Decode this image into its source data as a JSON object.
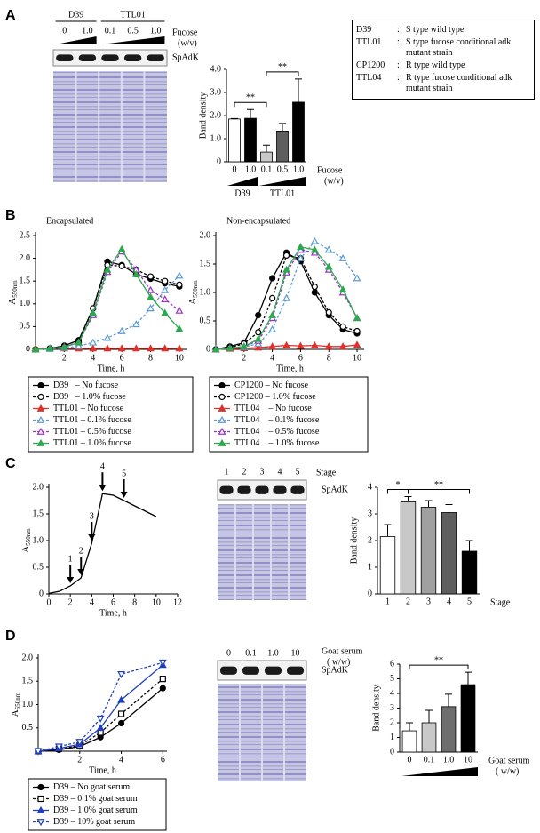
{
  "panel_letters": [
    "A",
    "B",
    "C",
    "D"
  ],
  "strain_table": [
    [
      "D39",
      ":",
      "S type wild type"
    ],
    [
      "TTL01",
      ":",
      "S type fucose conditional adk mutant strain"
    ],
    [
      "CP1200",
      ":",
      "R type wild type"
    ],
    [
      "TTL04",
      ":",
      "R type fucose conditional adk mutant strain"
    ]
  ],
  "blots": [
    {
      "groups": [
        {
          "label": "D39",
          "lanes": [
            0,
            1
          ]
        },
        {
          "label": "TTL01",
          "lanes": [
            2,
            3,
            4
          ]
        }
      ],
      "lanes": [
        "0",
        "1.0",
        "0.1",
        "0.5",
        "1.0"
      ],
      "condition_label": [
        "Fucose",
        "(w/v)"
      ],
      "band_label": "SpAdK"
    },
    {
      "lanes": [
        "1",
        "2",
        "3",
        "4",
        "5"
      ],
      "condition_label": [
        "Stage"
      ],
      "band_label": "SpAdK"
    },
    {
      "lanes": [
        "0",
        "0.1",
        "1.0",
        "10"
      ],
      "condition_label": [
        "Goat serum",
        "( w/w)"
      ],
      "band_label": "SpAdK"
    }
  ],
  "chart_data": [
    {
      "type": "bar",
      "categories": [
        "0",
        "1.0",
        "0.1",
        "0.5",
        "1.0"
      ],
      "values": [
        1.85,
        1.88,
        0.42,
        1.33,
        2.58
      ],
      "errors": [
        0.02,
        0.38,
        0.3,
        0.33,
        1.0
      ],
      "colors": [
        "#ffffff",
        "#000000",
        "#c8c8c8",
        "#5e5e5e",
        "#000000"
      ],
      "ylim": [
        0,
        4
      ],
      "yticks": [
        0,
        {
          "value": 1,
          "label": "1.0"
        },
        {
          "value": 2,
          "label": "2.0"
        },
        {
          "value": 3,
          "label": "3.0"
        },
        {
          "value": 4,
          "label": "4.0"
        }
      ],
      "y_label": "Band density",
      "x_label": [
        "Fucose",
        "(w/v)"
      ],
      "wedge": true,
      "groups": [
        {
          "label": "D39",
          "categories": [
            0,
            1
          ]
        },
        {
          "label": "TTL01",
          "categories": [
            2,
            3,
            4
          ]
        }
      ],
      "significance": [
        {
          "between": [
            0,
            2
          ],
          "label": "**"
        },
        {
          "between": [
            2,
            4
          ],
          "label": "**"
        }
      ]
    },
    {
      "type": "line",
      "title": "Encapsulated",
      "x": [
        0,
        1,
        2,
        3,
        4,
        5,
        6,
        7,
        8,
        9,
        10
      ],
      "xlim": [
        0,
        10.5
      ],
      "xticks": [
        2,
        4,
        6,
        8,
        10
      ],
      "ylim": [
        0,
        2.5
      ],
      "yticks": [
        0,
        0.5,
        {
          "value": 1,
          "label": "1.0"
        },
        1.5,
        {
          "value": 2,
          "label": "2.0"
        },
        2.5
      ],
      "x_label": "Time, h",
      "y_label": {
        "main": "A",
        "sub": "550nm"
      },
      "legend": true,
      "series": [
        {
          "name": "D39   – No fucose",
          "color": "#000000",
          "marker": "circle",
          "filled": true,
          "dashed": false,
          "values": [
            0,
            0.02,
            0.08,
            0.2,
            0.9,
            1.93,
            1.85,
            1.65,
            1.55,
            1.45,
            1.38
          ]
        },
        {
          "name": "D39   – 1.0% fucose",
          "color": "#000000",
          "marker": "circle",
          "filled": false,
          "dashed": true,
          "values": [
            0,
            0.02,
            0.06,
            0.15,
            0.9,
            1.85,
            1.83,
            1.75,
            1.6,
            1.5,
            1.42
          ]
        },
        {
          "name": "TTL01 – No fucose",
          "color": "#e0302a",
          "marker": "triangle",
          "filled": true,
          "dashed": false,
          "values": [
            0.02,
            0.02,
            0.02,
            0.02,
            0.02,
            0.02,
            0.02,
            0.02,
            0.02,
            0.02,
            0.02
          ]
        },
        {
          "name": "TTL01 – 0.1% fucose",
          "color": "#5b9bd5",
          "marker": "triangle",
          "filled": false,
          "dashed": true,
          "values": [
            0,
            0.01,
            0.03,
            0.07,
            0.15,
            0.25,
            0.4,
            0.55,
            0.9,
            1.3,
            1.62
          ]
        },
        {
          "name": "TTL01 – 0.5% fucose",
          "color": "#9b30c8",
          "marker": "triangle",
          "filled": false,
          "dashed": true,
          "values": [
            0,
            0.02,
            0.05,
            0.15,
            0.75,
            1.7,
            2.15,
            1.75,
            1.3,
            1.1,
            0.85
          ]
        },
        {
          "name": "TTL01 – 1.0% fucose",
          "color": "#2ca850",
          "marker": "triangle",
          "filled": true,
          "dashed": false,
          "values": [
            0,
            0.02,
            0.05,
            0.15,
            0.8,
            1.75,
            2.2,
            1.65,
            1.15,
            0.8,
            0.45
          ]
        }
      ]
    },
    {
      "type": "line",
      "title": "Non-encapsulated",
      "x": [
        0,
        1,
        2,
        3,
        4,
        5,
        6,
        7,
        8,
        9,
        10
      ],
      "xlim": [
        0,
        10.5
      ],
      "xticks": [
        2,
        4,
        6,
        8,
        10
      ],
      "ylim": [
        0,
        2
      ],
      "yticks": [
        0,
        0.5,
        {
          "value": 1,
          "label": "1.0"
        },
        1.5,
        {
          "value": 2,
          "label": "2.0"
        }
      ],
      "x_label": "Time, h",
      "y_label": {
        "main": "A",
        "sub": "550nm"
      },
      "legend": true,
      "series": [
        {
          "name": "CP1200 – No fucose",
          "color": "#000000",
          "marker": "circle",
          "filled": true,
          "dashed": false,
          "values": [
            0,
            0.05,
            0.12,
            0.6,
            1.25,
            1.7,
            1.55,
            1.0,
            0.6,
            0.35,
            0.28
          ]
        },
        {
          "name": "CP1200 – 1.0% fucose",
          "color": "#000000",
          "marker": "circle",
          "filled": false,
          "dashed": true,
          "values": [
            0,
            0.03,
            0.1,
            0.3,
            0.9,
            1.65,
            1.6,
            1.1,
            0.65,
            0.4,
            0.32
          ]
        },
        {
          "name": "TTL04    – No fucose",
          "color": "#e0302a",
          "marker": "triangle",
          "filled": true,
          "dashed": false,
          "values": [
            0,
            0.01,
            0.02,
            0.03,
            0.05,
            0.07,
            0.06,
            0.07,
            0.05,
            0.05,
            0.08
          ]
        },
        {
          "name": "TTL04    – 0.1% fucose",
          "color": "#5b9bd5",
          "marker": "triangle",
          "filled": false,
          "dashed": true,
          "values": [
            0,
            0.02,
            0.04,
            0.1,
            0.35,
            0.9,
            1.6,
            1.9,
            1.75,
            1.6,
            1.25
          ]
        },
        {
          "name": "TTL04    – 0.5% fucose",
          "color": "#9b30c8",
          "marker": "triangle",
          "filled": false,
          "dashed": true,
          "values": [
            0,
            0.02,
            0.05,
            0.15,
            0.55,
            1.35,
            1.75,
            1.7,
            1.4,
            1.0,
            0.55
          ]
        },
        {
          "name": "TTL04    – 1.0% fucose",
          "color": "#2ca850",
          "marker": "triangle",
          "filled": true,
          "dashed": false,
          "values": [
            0,
            0.02,
            0.05,
            0.18,
            0.6,
            1.4,
            1.8,
            1.75,
            1.45,
            1.05,
            0.55
          ]
        }
      ]
    },
    {
      "type": "line",
      "x": [
        0,
        1,
        2,
        3,
        4,
        5,
        6,
        7,
        8,
        9,
        10
      ],
      "xlim": [
        0,
        12
      ],
      "xticks": [
        0,
        2,
        4,
        6,
        8,
        10,
        12
      ],
      "ylim": [
        0,
        2
      ],
      "yticks": [
        0,
        0.5,
        {
          "value": 1,
          "label": "1.0"
        },
        1.5,
        {
          "value": 2,
          "label": "2.0"
        }
      ],
      "x_label": "Time, h",
      "y_label": {
        "main": "A",
        "sub": "550nm"
      },
      "series": [
        {
          "color": "#000000",
          "dashed": false,
          "values": [
            0.01,
            0.05,
            0.15,
            0.3,
            0.95,
            1.88,
            1.85,
            1.75,
            1.65,
            1.55,
            1.45
          ]
        }
      ],
      "annotations": [
        {
          "x": 2,
          "label": "1"
        },
        {
          "x": 3,
          "label": "2"
        },
        {
          "x": 4,
          "label": "3"
        },
        {
          "x": 5,
          "label": "4"
        },
        {
          "x": 7,
          "label": "5"
        }
      ]
    },
    {
      "type": "bar",
      "categories": [
        "1",
        "2",
        "3",
        "4",
        "5"
      ],
      "values": [
        2.15,
        3.45,
        3.25,
        3.05,
        1.6
      ],
      "errors": [
        0.45,
        0.2,
        0.25,
        0.3,
        0.4
      ],
      "colors": [
        "#ffffff",
        "#c8c8c8",
        "#a0a0a0",
        "#5e5e5e",
        "#000000"
      ],
      "ylim": [
        0,
        4
      ],
      "yticks": [
        0,
        1,
        2,
        3,
        4
      ],
      "y_label": "Band density",
      "x_label": [
        "Stage"
      ],
      "wedge": false,
      "significance": [
        {
          "between": [
            0,
            1
          ],
          "label": "*"
        },
        {
          "between": [
            1,
            4
          ],
          "label": "**"
        }
      ]
    },
    {
      "type": "line",
      "x": [
        0,
        1,
        2,
        3,
        4,
        6
      ],
      "xlim": [
        0,
        6.2
      ],
      "xticks": [
        2,
        4,
        6
      ],
      "ylim": [
        0,
        2
      ],
      "yticks": [
        0.5,
        {
          "value": 1,
          "label": "1.0"
        },
        1.5,
        {
          "value": 2,
          "label": "2.0"
        }
      ],
      "x_label": "Time, h",
      "y_label": {
        "main": "A",
        "sub": "550nm"
      },
      "legend": true,
      "series": [
        {
          "name": "D39 – No goat serum",
          "color": "#000000",
          "marker": "circle",
          "filled": true,
          "dashed": false,
          "values": [
            0,
            0.03,
            0.1,
            0.3,
            0.6,
            1.35
          ]
        },
        {
          "name": "D39 – 0.1% goat serum",
          "color": "#000000",
          "marker": "square",
          "filled": false,
          "dashed": true,
          "values": [
            0,
            0.05,
            0.12,
            0.4,
            0.8,
            1.55
          ]
        },
        {
          "name": "D39 – 1.0% goat serum",
          "color": "#1f3fbf",
          "marker": "triangle",
          "filled": true,
          "dashed": false,
          "values": [
            0,
            0.06,
            0.15,
            0.5,
            1.1,
            1.85
          ]
        },
        {
          "name": "D39 – 10% goat serum",
          "color": "#1f3fbf",
          "marker": "triangle-down",
          "filled": false,
          "dashed": true,
          "values": [
            0,
            0.1,
            0.2,
            0.7,
            1.65,
            1.9
          ]
        }
      ]
    },
    {
      "type": "bar",
      "categories": [
        "0",
        "0.1",
        "1.0",
        "10"
      ],
      "values": [
        1.45,
        2.0,
        3.1,
        4.6
      ],
      "errors": [
        0.55,
        0.85,
        0.85,
        0.85
      ],
      "colors": [
        "#ffffff",
        "#c8c8c8",
        "#6e6e6e",
        "#000000"
      ],
      "ylim": [
        0,
        6
      ],
      "yticks": [
        0,
        1,
        2,
        3,
        4,
        5,
        6
      ],
      "y_label": "Band density",
      "x_label": [
        "Goat serum",
        "( w/w)"
      ],
      "wedge": true,
      "significance": [
        {
          "between": [
            0,
            3
          ],
          "label": "**"
        }
      ]
    }
  ]
}
